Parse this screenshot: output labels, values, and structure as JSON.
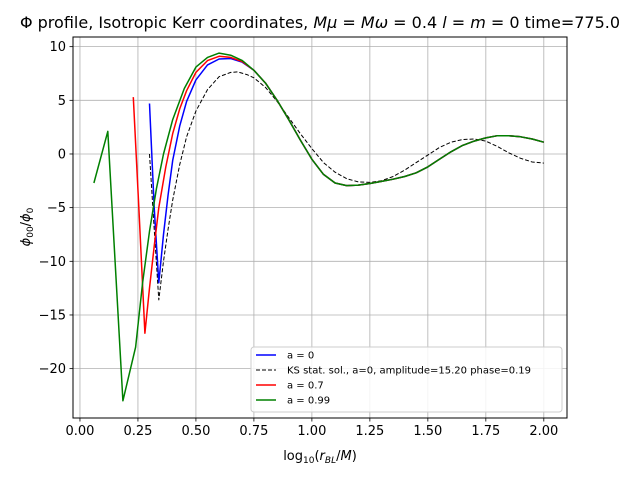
{
  "chart_data": {
    "type": "line",
    "title": "Φ profile, Isotropic Kerr coordinates, Mμ = Mω = 0.4 l = m = 0 time=775.0",
    "xlabel": "log10(rBL/M)",
    "ylabel": "ϕ00/ϕ0",
    "xlim": [
      -0.03,
      2.1
    ],
    "ylim": [
      -24.6,
      10.9
    ],
    "xticks": [
      0.0,
      0.25,
      0.5,
      0.75,
      1.0,
      1.25,
      1.5,
      1.75,
      2.0
    ],
    "xtick_labels": [
      "0.00",
      "0.25",
      "0.50",
      "0.75",
      "1.00",
      "1.25",
      "1.50",
      "1.75",
      "2.00"
    ],
    "yticks": [
      10,
      5,
      0,
      -5,
      -10,
      -15,
      -20
    ],
    "ytick_labels": [
      "10",
      "5",
      "0",
      "−5",
      "−10",
      "−15",
      "−20"
    ],
    "grid": true,
    "legend_position": "lower-right",
    "series": [
      {
        "name": "a = 0",
        "color": "#0000ff",
        "dash": "solid",
        "x": [
          0.3,
          0.32,
          0.34,
          0.36,
          0.38,
          0.4,
          0.43,
          0.46,
          0.5,
          0.55,
          0.6,
          0.65,
          0.7,
          0.75,
          0.8,
          0.85,
          0.9,
          0.95,
          1.0,
          1.05,
          1.1,
          1.15,
          1.2,
          1.25,
          1.3,
          1.35,
          1.4,
          1.45,
          1.5,
          1.55,
          1.6,
          1.65,
          1.7,
          1.75,
          1.8,
          1.85,
          1.9,
          1.95,
          2.0
        ],
        "y": [
          4.7,
          -5.0,
          -12.0,
          -7.5,
          -3.8,
          -0.6,
          2.6,
          4.9,
          6.9,
          8.3,
          8.85,
          8.9,
          8.55,
          7.8,
          6.6,
          5.0,
          3.2,
          1.3,
          -0.5,
          -1.9,
          -2.7,
          -2.95,
          -2.9,
          -2.75,
          -2.55,
          -2.35,
          -2.1,
          -1.75,
          -1.2,
          -0.5,
          0.2,
          0.8,
          1.2,
          1.5,
          1.7,
          1.7,
          1.6,
          1.4,
          1.1
        ]
      },
      {
        "name": "KS stat. sol., a=0, amplitude=15.20 phase=0.19",
        "color": "#000000",
        "dash": "dashed",
        "x": [
          0.3,
          0.32,
          0.34,
          0.36,
          0.38,
          0.4,
          0.43,
          0.46,
          0.5,
          0.55,
          0.6,
          0.65,
          0.68,
          0.72,
          0.75,
          0.8,
          0.85,
          0.9,
          0.95,
          1.0,
          1.05,
          1.1,
          1.15,
          1.2,
          1.25,
          1.3,
          1.35,
          1.4,
          1.45,
          1.5,
          1.55,
          1.6,
          1.65,
          1.7,
          1.75,
          1.8,
          1.85,
          1.9,
          1.95,
          2.0
        ],
        "y": [
          0.0,
          -7.0,
          -13.6,
          -10.0,
          -7.0,
          -4.3,
          -1.0,
          1.6,
          4.0,
          6.0,
          7.2,
          7.6,
          7.65,
          7.4,
          7.1,
          6.2,
          4.9,
          3.4,
          1.9,
          0.5,
          -0.8,
          -1.7,
          -2.3,
          -2.6,
          -2.65,
          -2.5,
          -2.1,
          -1.5,
          -0.8,
          -0.1,
          0.6,
          1.1,
          1.35,
          1.4,
          1.2,
          0.7,
          0.1,
          -0.4,
          -0.75,
          -0.85
        ]
      },
      {
        "name": "a = 0.7",
        "color": "#ff0000",
        "dash": "solid",
        "x": [
          0.23,
          0.255,
          0.28,
          0.3,
          0.32,
          0.34,
          0.37,
          0.4,
          0.43,
          0.46,
          0.5,
          0.55,
          0.6,
          0.65,
          0.7,
          0.75,
          0.8,
          0.85,
          0.9,
          0.95,
          1.0,
          1.05,
          1.1,
          1.15,
          1.2,
          1.25,
          1.3,
          1.35,
          1.4,
          1.45,
          1.5,
          1.55,
          1.6,
          1.65,
          1.7,
          1.75,
          1.8,
          1.85,
          1.9,
          1.95,
          2.0
        ],
        "y": [
          5.3,
          -5.5,
          -16.7,
          -12.5,
          -8.6,
          -5.0,
          -1.2,
          1.9,
          4.2,
          5.9,
          7.6,
          8.7,
          9.1,
          9.0,
          8.6,
          7.8,
          6.6,
          5.0,
          3.2,
          1.3,
          -0.5,
          -1.9,
          -2.7,
          -2.95,
          -2.9,
          -2.75,
          -2.55,
          -2.35,
          -2.1,
          -1.75,
          -1.2,
          -0.5,
          0.2,
          0.8,
          1.2,
          1.5,
          1.7,
          1.7,
          1.6,
          1.4,
          1.1
        ]
      },
      {
        "name": "a = 0.99",
        "color": "#008000",
        "dash": "solid",
        "x": [
          0.06,
          0.12,
          0.185,
          0.24,
          0.27,
          0.3,
          0.33,
          0.36,
          0.4,
          0.45,
          0.5,
          0.55,
          0.6,
          0.65,
          0.7,
          0.75,
          0.8,
          0.85,
          0.9,
          0.95,
          1.0,
          1.05,
          1.1,
          1.15,
          1.2,
          1.25,
          1.3,
          1.35,
          1.4,
          1.45,
          1.5,
          1.55,
          1.6,
          1.65,
          1.7,
          1.75,
          1.8,
          1.85,
          1.9,
          1.95,
          2.0
        ],
        "y": [
          -2.7,
          2.1,
          -23.0,
          -18.0,
          -12.0,
          -7.2,
          -3.2,
          0.0,
          3.2,
          6.1,
          8.1,
          9.0,
          9.4,
          9.2,
          8.7,
          7.8,
          6.6,
          5.0,
          3.2,
          1.3,
          -0.5,
          -1.9,
          -2.7,
          -2.95,
          -2.9,
          -2.75,
          -2.55,
          -2.35,
          -2.1,
          -1.75,
          -1.2,
          -0.5,
          0.2,
          0.8,
          1.2,
          1.5,
          1.7,
          1.7,
          1.6,
          1.4,
          1.1
        ]
      }
    ]
  }
}
